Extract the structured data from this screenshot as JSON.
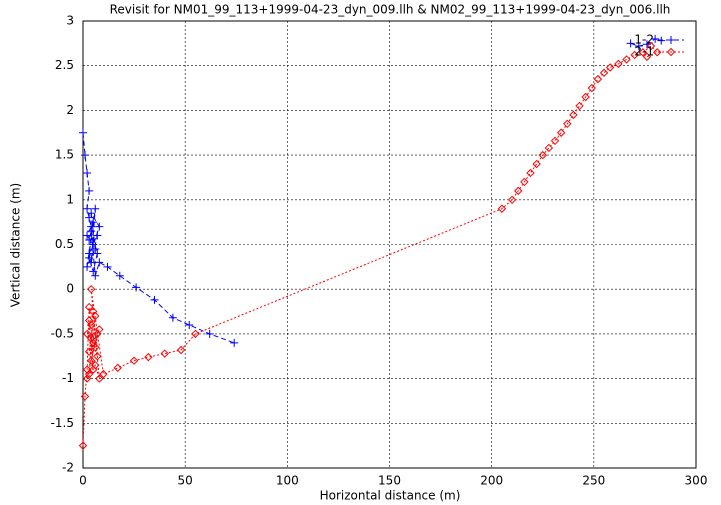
{
  "chart_data": {
    "type": "line",
    "title": "Revisit for NM01_99_113+1999-04-23_dyn_009.llh & NM02_99_113+1999-04-23_dyn_006.llh",
    "x_label": "Horizontal distance (m)",
    "y_label": "Vertical distance (m)",
    "xlim": [
      0,
      300
    ],
    "ylim": [
      -2,
      3
    ],
    "xticks": [
      0,
      50,
      100,
      150,
      200,
      250,
      300
    ],
    "yticks": [
      -2,
      -1.5,
      -1,
      -0.5,
      0,
      0.5,
      1,
      1.5,
      2,
      2.5,
      3
    ],
    "grid": true,
    "legend": "top-right",
    "series": [
      {
        "name": "1-2",
        "color": "#0000ff",
        "marker": "plus",
        "dash": "dashed",
        "x": [
          0,
          1,
          2,
          3,
          2,
          3,
          4,
          2,
          5,
          3,
          6,
          4,
          7,
          3,
          5,
          2,
          6,
          4,
          8,
          3,
          5,
          7,
          4,
          6,
          8,
          12,
          18,
          26,
          35,
          44,
          52,
          62,
          74,
          80,
          268,
          272,
          276,
          280,
          283
        ],
        "values": [
          1.75,
          1.5,
          1.3,
          1.1,
          0.9,
          0.8,
          0.7,
          0.6,
          0.5,
          0.4,
          0.9,
          0.3,
          0.6,
          0.55,
          0.75,
          0.25,
          0.45,
          0.85,
          0.7,
          0.35,
          0.2,
          0.4,
          0.65,
          0.15,
          0.3,
          0.25,
          0.15,
          0.02,
          -0.12,
          -0.32,
          -0.4,
          -0.5,
          -0.6,
          null,
          2.75,
          2.72,
          2.74,
          2.8,
          2.78
        ]
      },
      {
        "name": "2-1",
        "color": "#ff0000",
        "marker": "diamond",
        "dash": "dotted",
        "x": [
          0,
          1,
          2,
          3,
          4,
          2,
          5,
          3,
          6,
          4,
          7,
          2,
          5,
          3,
          6,
          8,
          4,
          7,
          5,
          3,
          6,
          8,
          4,
          10,
          17,
          25,
          32,
          40,
          48,
          55,
          205,
          210,
          213,
          216,
          219,
          222,
          225,
          228,
          231,
          234,
          237,
          240,
          243,
          246,
          249,
          252,
          255,
          258,
          262,
          266,
          270,
          274,
          278,
          281,
          276
        ],
        "values": [
          -1.75,
          -1.2,
          -0.9,
          -0.2,
          -0.4,
          -0.5,
          -0.6,
          -0.7,
          -0.3,
          -0.8,
          -0.5,
          -1.0,
          -0.9,
          -0.35,
          -0.65,
          -0.45,
          -0.55,
          -0.75,
          -0.25,
          -0.95,
          -0.85,
          -1.0,
          0.0,
          -0.95,
          -0.88,
          -0.8,
          -0.76,
          -0.72,
          -0.68,
          -0.5,
          0.9,
          1.0,
          1.1,
          1.2,
          1.3,
          1.4,
          1.5,
          1.58,
          1.66,
          1.75,
          1.85,
          1.95,
          2.05,
          2.15,
          2.25,
          2.35,
          2.42,
          2.48,
          2.52,
          2.57,
          2.62,
          2.65,
          2.72,
          2.65,
          2.6
        ]
      }
    ]
  }
}
